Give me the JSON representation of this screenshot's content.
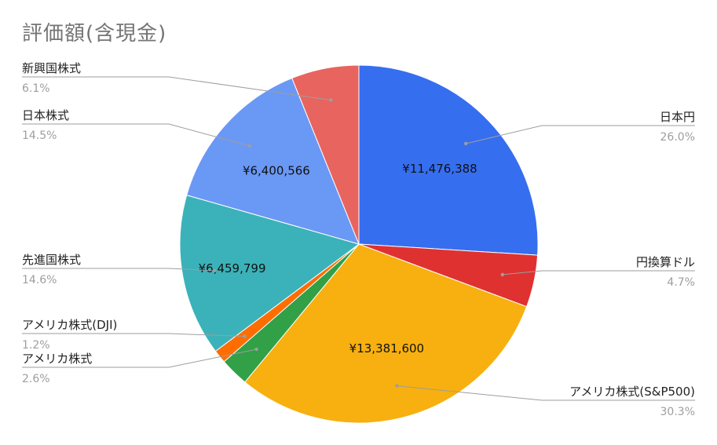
{
  "chart_data": {
    "type": "pie",
    "title": "評価額(含現金)",
    "slices": [
      {
        "label": "日本円",
        "value": 11476388,
        "value_label": "¥11,476,388",
        "percent_label": "26.0%",
        "color": "#366ef0"
      },
      {
        "label": "円換算ドル",
        "value": 2075000,
        "value_label": "",
        "percent_label": "4.7%",
        "color": "#e03131"
      },
      {
        "label": "アメリカ株式(S&P500)",
        "value": 13381600,
        "value_label": "¥13,381,600",
        "percent_label": "30.3%",
        "color": "#f7b00f"
      },
      {
        "label": "アメリカ株式",
        "value": 1148000,
        "value_label": "",
        "percent_label": "2.6%",
        "color": "#31a046"
      },
      {
        "label": "アメリカ株式(DJI)",
        "value": 530000,
        "value_label": "",
        "percent_label": "1.2%",
        "color": "#ff6d01"
      },
      {
        "label": "先進国株式",
        "value": 6459799,
        "value_label": "¥6,459,799",
        "percent_label": "14.6%",
        "color": "#3bb2b9"
      },
      {
        "label": "日本株式",
        "value": 6400566,
        "value_label": "¥6,400,566",
        "percent_label": "14.5%",
        "color": "#6a98f5"
      },
      {
        "label": "新興国株式",
        "value": 2693000,
        "value_label": "",
        "percent_label": "6.1%",
        "color": "#e8645f"
      }
    ]
  }
}
